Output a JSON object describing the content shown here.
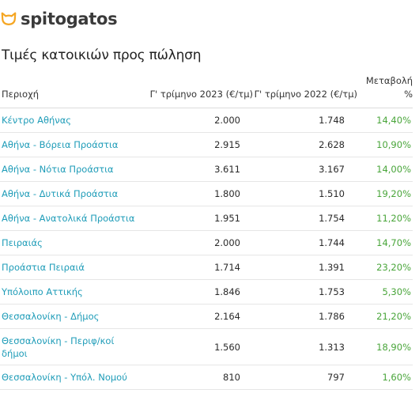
{
  "brand": {
    "name": "spitogatos",
    "icon": "cat-head-icon",
    "icon_color": "#f5a623"
  },
  "title": "Τιμές κατοικιών προς πώληση",
  "colors": {
    "link": "#1e9cb8",
    "positive": "#49a53a"
  },
  "table": {
    "headers": [
      "Περιοχή",
      "Γ' τρίμηνο 2023 (€/τμ)",
      "Γ' τρίμηνο 2022 (€/τμ)",
      "Μεταβολή %"
    ],
    "rows": [
      [
        "Κέντρο Αθήνας",
        "2.000",
        "1.748",
        "14,40%"
      ],
      [
        "Αθήνα - Βόρεια Προάστια",
        "2.915",
        "2.628",
        "10,90%"
      ],
      [
        "Αθήνα - Νότια Προάστια",
        "3.611",
        "3.167",
        "14,00%"
      ],
      [
        "Αθήνα - Δυτικά Προάστια",
        "1.800",
        "1.510",
        "19,20%"
      ],
      [
        "Αθήνα - Ανατολικά Προάστια",
        "1.951",
        "1.754",
        "11,20%"
      ],
      [
        "Πειραιάς",
        "2.000",
        "1.744",
        "14,70%"
      ],
      [
        "Προάστια Πειραιά",
        "1.714",
        "1.391",
        "23,20%"
      ],
      [
        "Υπόλοιπο Αττικής",
        "1.846",
        "1.753",
        "5,30%"
      ],
      [
        "Θεσσαλονίκη - Δήμος",
        "2.164",
        "1.786",
        "21,20%"
      ],
      [
        "Θεσσαλονίκη - Περιφ/κοί δήμοι",
        "1.560",
        "1.313",
        "18,90%"
      ],
      [
        "Θεσσαλονίκη - Υπόλ. Νομού",
        "810",
        "797",
        "1,60%"
      ]
    ]
  }
}
